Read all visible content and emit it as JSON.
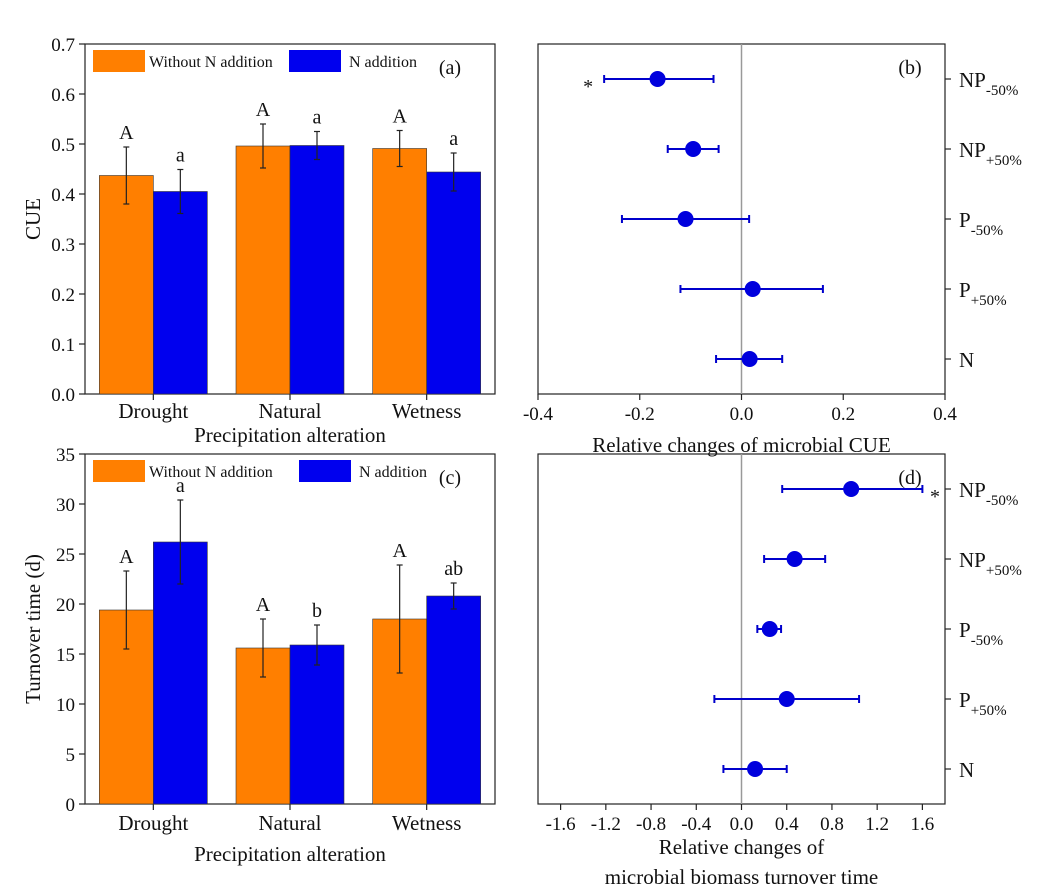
{
  "colors": {
    "without_n": "#ff7f00",
    "with_n": "#0000ee",
    "forest_point": "#0000dd"
  },
  "chart_data": [
    {
      "panel": "(a)",
      "type": "bar",
      "ylabel": "CUE",
      "xlabel": "Precipitation alteration",
      "ylim": [
        0,
        0.7
      ],
      "yticks": [
        "0.0",
        "0.1",
        "0.2",
        "0.3",
        "0.4",
        "0.5",
        "0.6",
        "0.7"
      ],
      "yticks_values": [
        0,
        0.1,
        0.2,
        0.3,
        0.4,
        0.5,
        0.6,
        0.7
      ],
      "categories": [
        "Drought",
        "Natural",
        "Wetness"
      ],
      "series": [
        {
          "name": "Without N addition",
          "values": [
            0.437,
            0.496,
            0.491
          ],
          "errors": [
            0.057,
            0.044,
            0.036
          ],
          "letters": [
            "A",
            "A",
            "A"
          ]
        },
        {
          "name": "N addition",
          "values": [
            0.405,
            0.497,
            0.444
          ],
          "errors": [
            0.044,
            0.028,
            0.038
          ],
          "letters": [
            "a",
            "a",
            "a"
          ]
        }
      ]
    },
    {
      "panel": "(b)",
      "type": "scatter",
      "xlabel": "Relative changes of microbial CUE",
      "xlim": [
        -0.4,
        0.4
      ],
      "xticks": [
        "-0.4",
        "-0.2",
        "0.0",
        "0.2",
        "0.4"
      ],
      "xticks_values": [
        -0.4,
        -0.2,
        0,
        0.2,
        0.4
      ],
      "categories": [
        {
          "main": "NP",
          "sub": "-50%"
        },
        {
          "main": "NP",
          "sub": "+50%"
        },
        {
          "main": "P",
          "sub": "-50%"
        },
        {
          "main": "P",
          "sub": "+50%"
        },
        {
          "main": "N",
          "sub": ""
        }
      ],
      "values": [
        -0.165,
        -0.095,
        -0.11,
        0.022,
        0.016
      ],
      "lower": [
        -0.27,
        -0.145,
        -0.235,
        -0.12,
        -0.05
      ],
      "upper": [
        -0.055,
        -0.045,
        0.015,
        0.16,
        0.08
      ],
      "significance": [
        "*",
        "",
        "",
        "",
        ""
      ]
    },
    {
      "panel": "(c)",
      "type": "bar",
      "ylabel": "Turnover time (d)",
      "xlabel": "Precipitation alteration",
      "ylim": [
        0,
        35
      ],
      "yticks": [
        "0",
        "5",
        "10",
        "15",
        "20",
        "25",
        "30",
        "35"
      ],
      "yticks_values": [
        0,
        5,
        10,
        15,
        20,
        25,
        30,
        35
      ],
      "categories": [
        "Drought",
        "Natural",
        "Wetness"
      ],
      "series": [
        {
          "name": "Without N addition",
          "values": [
            19.4,
            15.6,
            18.5
          ],
          "errors": [
            3.9,
            2.9,
            5.4
          ],
          "letters": [
            "A",
            "A",
            "A"
          ]
        },
        {
          "name": "N addition",
          "values": [
            26.2,
            15.9,
            20.8
          ],
          "errors": [
            4.2,
            2.0,
            1.3
          ],
          "letters": [
            "a",
            "b",
            "ab"
          ]
        }
      ]
    },
    {
      "panel": "(d)",
      "type": "scatter",
      "xlabel": [
        "Relative changes of",
        "microbial biomass turnover time"
      ],
      "xlim": [
        -1.8,
        1.8
      ],
      "xticks": [
        "-1.6",
        "-1.2",
        "-0.8",
        "-0.4",
        "0.0",
        "0.4",
        "0.8",
        "1.2",
        "1.6"
      ],
      "xticks_values": [
        -1.6,
        -1.2,
        -0.8,
        -0.4,
        0,
        0.4,
        0.8,
        1.2,
        1.6
      ],
      "categories": [
        {
          "main": "NP",
          "sub": "-50%"
        },
        {
          "main": "NP",
          "sub": "+50%"
        },
        {
          "main": "P",
          "sub": "-50%"
        },
        {
          "main": "P",
          "sub": "+50%"
        },
        {
          "main": "N",
          "sub": ""
        }
      ],
      "values": [
        0.97,
        0.47,
        0.25,
        0.4,
        0.12
      ],
      "lower": [
        0.36,
        0.2,
        0.14,
        -0.24,
        -0.16
      ],
      "upper": [
        1.6,
        0.74,
        0.35,
        1.04,
        0.4
      ],
      "significance": [
        "*",
        "",
        "",
        "",
        ""
      ]
    }
  ]
}
